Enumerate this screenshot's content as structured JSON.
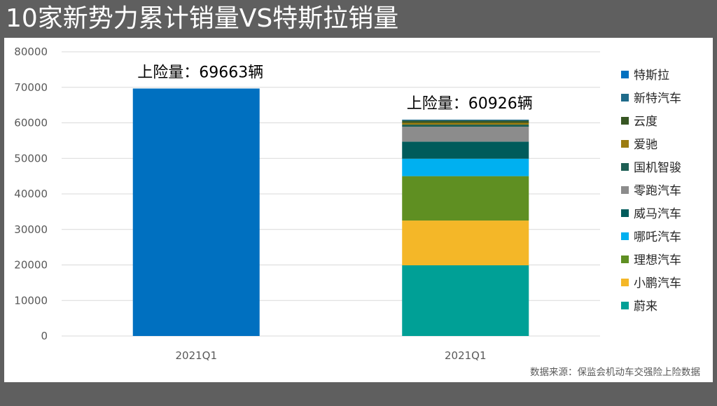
{
  "chart_data": {
    "type": "bar",
    "stacked": true,
    "title": "10家新势力累计销量VS特斯拉销量",
    "source_note": "数据来源：保监会机动车交强险上险数据",
    "categories": [
      "2021Q1",
      "2021Q1"
    ],
    "ylim": [
      0,
      80000
    ],
    "y_ticks": [
      "0",
      "10000",
      "20000",
      "30000",
      "40000",
      "50000",
      "60000",
      "70000",
      "80000"
    ],
    "grid": true,
    "legend_position": "right",
    "annotations": [
      "上险量：69663辆",
      "上险量：60926辆"
    ],
    "series": [
      {
        "name": "特斯拉",
        "color": "#0070c0",
        "values": [
          69663,
          0
        ]
      },
      {
        "name": "新特汽车",
        "color": "#1f6b8a",
        "values": [
          0,
          300
        ]
      },
      {
        "name": "云度",
        "color": "#375623",
        "values": [
          0,
          600
        ]
      },
      {
        "name": "爱驰",
        "color": "#9c7c10",
        "values": [
          0,
          500
        ]
      },
      {
        "name": "国机智骏",
        "color": "#1e5f54",
        "values": [
          0,
          600
        ]
      },
      {
        "name": "零跑汽车",
        "color": "#8c8c8c",
        "values": [
          0,
          4200
        ]
      },
      {
        "name": "威马汽车",
        "color": "#005b5b",
        "values": [
          0,
          4800
        ]
      },
      {
        "name": "哪吒汽车",
        "color": "#00b0f0",
        "values": [
          0,
          4900
        ]
      },
      {
        "name": "理想汽车",
        "color": "#5f8f22",
        "values": [
          0,
          12500
        ]
      },
      {
        "name": "小鹏汽车",
        "color": "#f4b728",
        "values": [
          0,
          12600
        ]
      },
      {
        "name": "蔚来",
        "color": "#00a096",
        "values": [
          0,
          19900
        ]
      }
    ]
  }
}
